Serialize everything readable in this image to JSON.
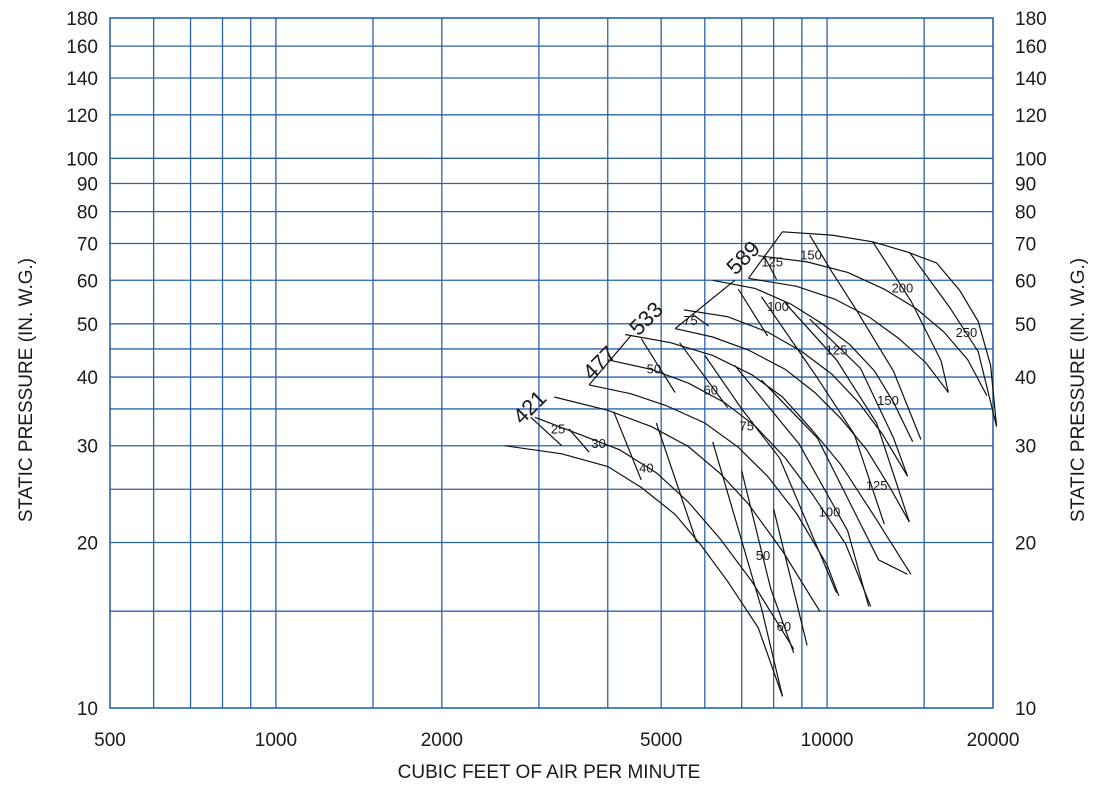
{
  "chart_data": {
    "type": "line",
    "title": "",
    "xlabel": "CUBIC FEET OF AIR PER MINUTE",
    "ylabel_left": "STATIC PRESSURE (IN. W.G.)",
    "ylabel_right": "STATIC PRESSURE (IN. W.G.)",
    "x_scale": "log",
    "y_scale": "log",
    "xlim": [
      500,
      20000
    ],
    "ylim": [
      10,
      180
    ],
    "grid": true,
    "colors": {
      "grid": "#2a63a8",
      "curves": "#111111"
    },
    "x_gridlines": [
      600,
      700,
      800,
      900,
      1000,
      1500,
      2000,
      3000,
      4000,
      5000,
      6000,
      7000,
      8000,
      9000,
      10000,
      15000
    ],
    "y_gridlines": [
      15,
      20,
      25,
      30,
      35,
      40,
      45,
      50,
      60,
      70,
      80,
      90,
      100,
      120,
      140,
      160
    ],
    "x_ticks": [
      {
        "value": 500,
        "label": "500"
      },
      {
        "value": 1000,
        "label": "1000"
      },
      {
        "value": 2000,
        "label": "2000"
      },
      {
        "value": 5000,
        "label": "5000"
      },
      {
        "value": 10000,
        "label": "10000"
      },
      {
        "value": 20000,
        "label": "20000"
      }
    ],
    "y_ticks": [
      {
        "value": 10,
        "label": "10"
      },
      {
        "value": 20,
        "label": "20"
      },
      {
        "value": 30,
        "label": "30"
      },
      {
        "value": 40,
        "label": "40"
      },
      {
        "value": 50,
        "label": "50"
      },
      {
        "value": 60,
        "label": "60"
      },
      {
        "value": 70,
        "label": "70"
      },
      {
        "value": 80,
        "label": "80"
      },
      {
        "value": 90,
        "label": "90"
      },
      {
        "value": 100,
        "label": "100"
      },
      {
        "value": 120,
        "label": "120"
      },
      {
        "value": 140,
        "label": "140"
      },
      {
        "value": 160,
        "label": "160"
      },
      {
        "value": 180,
        "label": "180"
      }
    ],
    "fan_curves": [
      {
        "rpm": "421",
        "label_at": [
          2950,
          34.5
        ],
        "curves": [
          [
            [
              2600,
              30.0
            ],
            [
              3300,
              29.0
            ],
            [
              4000,
              27.5
            ],
            [
              4600,
              25.2
            ],
            [
              5300,
              22.5
            ],
            [
              5900,
              19.8
            ],
            [
              6600,
              17.0
            ],
            [
              7500,
              14.0
            ],
            [
              8300,
              10.5
            ]
          ],
          [
            [
              2950,
              33.8
            ],
            [
              3400,
              32.0
            ],
            [
              4200,
              29.5
            ],
            [
              4900,
              26.8
            ],
            [
              5600,
              23.7
            ],
            [
              6400,
              20.3
            ],
            [
              7300,
              17.0
            ],
            [
              8700,
              12.8
            ]
          ],
          [
            [
              3200,
              36.8
            ],
            [
              4000,
              34.8
            ],
            [
              4800,
              32.5
            ],
            [
              5600,
              29.9
            ],
            [
              6400,
              26.7
            ],
            [
              7200,
              23.5
            ],
            [
              8300,
              19.3
            ],
            [
              9700,
              15.0
            ]
          ]
        ],
        "hp_lines": [
          [
            [
              2900,
              33.8
            ],
            [
              3300,
              30.0
            ]
          ],
          [
            [
              3400,
              32.2
            ],
            [
              3700,
              29.2
            ]
          ],
          [
            [
              4100,
              34.6
            ],
            [
              4600,
              26.0
            ]
          ],
          [
            [
              4900,
              33.0
            ],
            [
              5800,
              20.0
            ]
          ],
          [
            [
              6200,
              30.5
            ],
            [
              7600,
              15.2
            ],
            [
              8300,
              10.5
            ]
          ],
          [
            [
              7000,
              27.0
            ],
            [
              7900,
              16.5
            ],
            [
              8700,
              12.6
            ]
          ],
          [
            [
              8000,
              23.0
            ],
            [
              9200,
              13.0
            ]
          ]
        ],
        "hp_labels": [
          {
            "text": "25",
            "at": [
              3250,
              31.6
            ]
          },
          {
            "text": "30",
            "at": [
              3850,
              29.7
            ]
          },
          {
            "text": "40",
            "at": [
              4700,
              26.8
            ]
          },
          {
            "text": "50",
            "at": [
              7650,
              18.6
            ]
          },
          {
            "text": "60",
            "at": [
              8350,
              13.8
            ]
          }
        ]
      },
      {
        "rpm": "477",
        "label_at": [
          3950,
          41.5
        ],
        "curves": [
          [
            [
              3700,
              38.7
            ],
            [
              4400,
              37.3
            ],
            [
              5100,
              35.5
            ],
            [
              6000,
              33.0
            ],
            [
              6900,
              29.8
            ],
            [
              7800,
              26.4
            ],
            [
              8800,
              22.6
            ],
            [
              10000,
              18.2
            ],
            [
              10500,
              16.0
            ]
          ],
          [
            [
              4000,
              43.0
            ],
            [
              4800,
              41.3
            ],
            [
              5600,
              39.0
            ],
            [
              6500,
              36.0
            ],
            [
              7400,
              32.6
            ],
            [
              8400,
              28.5
            ],
            [
              9400,
              24.5
            ],
            [
              10800,
              19.9
            ],
            [
              12000,
              15.3
            ]
          ],
          [
            [
              4300,
              47.8
            ],
            [
              5200,
              46.2
            ],
            [
              6200,
              43.8
            ],
            [
              7300,
              40.4
            ],
            [
              8300,
              36.8
            ],
            [
              9400,
              32.0
            ],
            [
              10600,
              27.7
            ],
            [
              12300,
              22.0
            ],
            [
              14200,
              17.5
            ]
          ]
        ],
        "hp_lines": [
          [
            [
              3700,
              38.7
            ],
            [
              4400,
              47.5
            ]
          ],
          [
            [
              4600,
              47.0
            ],
            [
              5300,
              37.5
            ]
          ],
          [
            [
              5400,
              46.2
            ],
            [
              6600,
              35.2
            ]
          ],
          [
            [
              6000,
              43.8
            ],
            [
              7000,
              35.0
            ],
            [
              8200,
              28.5
            ],
            [
              10400,
              16.2
            ]
          ],
          [
            [
              6800,
              42.0
            ],
            [
              8900,
              30.2
            ],
            [
              10900,
              21.0
            ],
            [
              11900,
              15.3
            ]
          ],
          [
            [
              7600,
              39.5
            ],
            [
              9600,
              31.0
            ],
            [
              12400,
              18.6
            ],
            [
              14000,
              17.5
            ]
          ]
        ],
        "hp_labels": [
          {
            "text": "50",
            "at": [
              4850,
              40.6
            ]
          },
          {
            "text": "60",
            "at": [
              6150,
              37.2
            ]
          },
          {
            "text": "75",
            "at": [
              7150,
              32.0
            ]
          },
          {
            "text": "100",
            "at": [
              10100,
              22.3
            ]
          },
          {
            "text": "125",
            "at": [
              12300,
              24.9
            ]
          }
        ]
      },
      {
        "rpm": "533",
        "label_at": [
          4800,
          50.0
        ],
        "curves": [
          [
            [
              5300,
              49.0
            ],
            [
              6200,
              47.3
            ],
            [
              7200,
              44.8
            ],
            [
              8400,
              41.3
            ],
            [
              9500,
              37.5
            ],
            [
              10600,
              33.6
            ],
            [
              11800,
              29.5
            ],
            [
              13000,
              25.2
            ],
            [
              14100,
              21.8
            ]
          ],
          [
            [
              5500,
              53.0
            ],
            [
              6600,
              51.5
            ],
            [
              7800,
              48.3
            ],
            [
              9000,
              44.5
            ],
            [
              10200,
              40.5
            ],
            [
              11400,
              36.0
            ],
            [
              12600,
              31.5
            ],
            [
              14000,
              26.4
            ]
          ],
          [
            [
              6200,
              60.0
            ],
            [
              7400,
              58.0
            ],
            [
              8600,
              54.3
            ],
            [
              9800,
              50.0
            ],
            [
              11000,
              45.8
            ],
            [
              12200,
              41.0
            ],
            [
              13200,
              36.0
            ],
            [
              14300,
              30.5
            ]
          ]
        ],
        "hp_lines": [
          [
            [
              5300,
              49.0
            ],
            [
              6800,
              60.0
            ]
          ],
          [
            [
              5700,
              52.0
            ],
            [
              6100,
              49.5
            ]
          ],
          [
            [
              6900,
              57.8
            ],
            [
              7800,
              47.5
            ]
          ],
          [
            [
              7600,
              56.0
            ],
            [
              9500,
              40.5
            ],
            [
              11200,
              31.5
            ],
            [
              12700,
              21.6
            ]
          ],
          [
            [
              8400,
              54.5
            ],
            [
              10400,
              43.0
            ],
            [
              12300,
              33.0
            ],
            [
              14100,
              21.8
            ]
          ],
          [
            [
              9300,
              51.0
            ],
            [
              11500,
              41.5
            ],
            [
              13200,
              31.0
            ],
            [
              14000,
              26.4
            ]
          ]
        ],
        "hp_labels": [
          {
            "text": "75",
            "at": [
              5650,
              49.7
            ]
          },
          {
            "text": "100",
            "at": [
              8150,
              52.7
            ]
          },
          {
            "text": "125",
            "at": [
              10400,
              44.0
            ]
          },
          {
            "text": "150",
            "at": [
              12900,
              35.6
            ]
          }
        ]
      },
      {
        "rpm": "589",
        "label_at": [
          7200,
          64.5
        ],
        "curves": [
          [
            [
              7200,
              60.5
            ],
            [
              8800,
              58.5
            ],
            [
              10300,
              55.5
            ],
            [
              11900,
              51.5
            ],
            [
              13500,
              47.0
            ],
            [
              15100,
              42.5
            ],
            [
              16600,
              37.5
            ]
          ],
          [
            [
              7500,
              66.5
            ],
            [
              9200,
              64.8
            ],
            [
              10900,
              62.0
            ],
            [
              12700,
              57.8
            ],
            [
              14500,
              53.3
            ],
            [
              16300,
              48.3
            ],
            [
              18000,
              43.0
            ],
            [
              19500,
              37.0
            ]
          ],
          [
            [
              8300,
              73.5
            ],
            [
              10200,
              72.5
            ],
            [
              12100,
              70.5
            ],
            [
              14000,
              67.5
            ],
            [
              15800,
              64.5
            ],
            [
              17400,
              57.5
            ],
            [
              18800,
              50.5
            ],
            [
              19800,
              42.0
            ],
            [
              20300,
              32.5
            ]
          ]
        ],
        "hp_lines": [
          [
            [
              7200,
              60.5
            ],
            [
              8300,
              73.5
            ]
          ],
          [
            [
              7700,
              66.2
            ],
            [
              8100,
              60.2
            ]
          ],
          [
            [
              9300,
              72.5
            ],
            [
              10200,
              62.2
            ],
            [
              11300,
              53.0
            ],
            [
              13200,
              41.0
            ],
            [
              14800,
              30.8
            ]
          ],
          [
            [
              12100,
              70.5
            ],
            [
              14200,
              55.0
            ],
            [
              16100,
              42.8
            ],
            [
              16600,
              37.5
            ]
          ],
          [
            [
              14100,
              67.5
            ],
            [
              16700,
              53.5
            ],
            [
              18800,
              44.5
            ],
            [
              20300,
              32.5
            ]
          ]
        ],
        "hp_labels": [
          {
            "text": "125",
            "at": [
              7950,
              63.6
            ]
          },
          {
            "text": "150",
            "at": [
              9350,
              65.5
            ]
          },
          {
            "text": "200",
            "at": [
              13700,
              57.0
            ]
          },
          {
            "text": "250",
            "at": [
              17900,
              47.3
            ]
          }
        ]
      }
    ]
  }
}
